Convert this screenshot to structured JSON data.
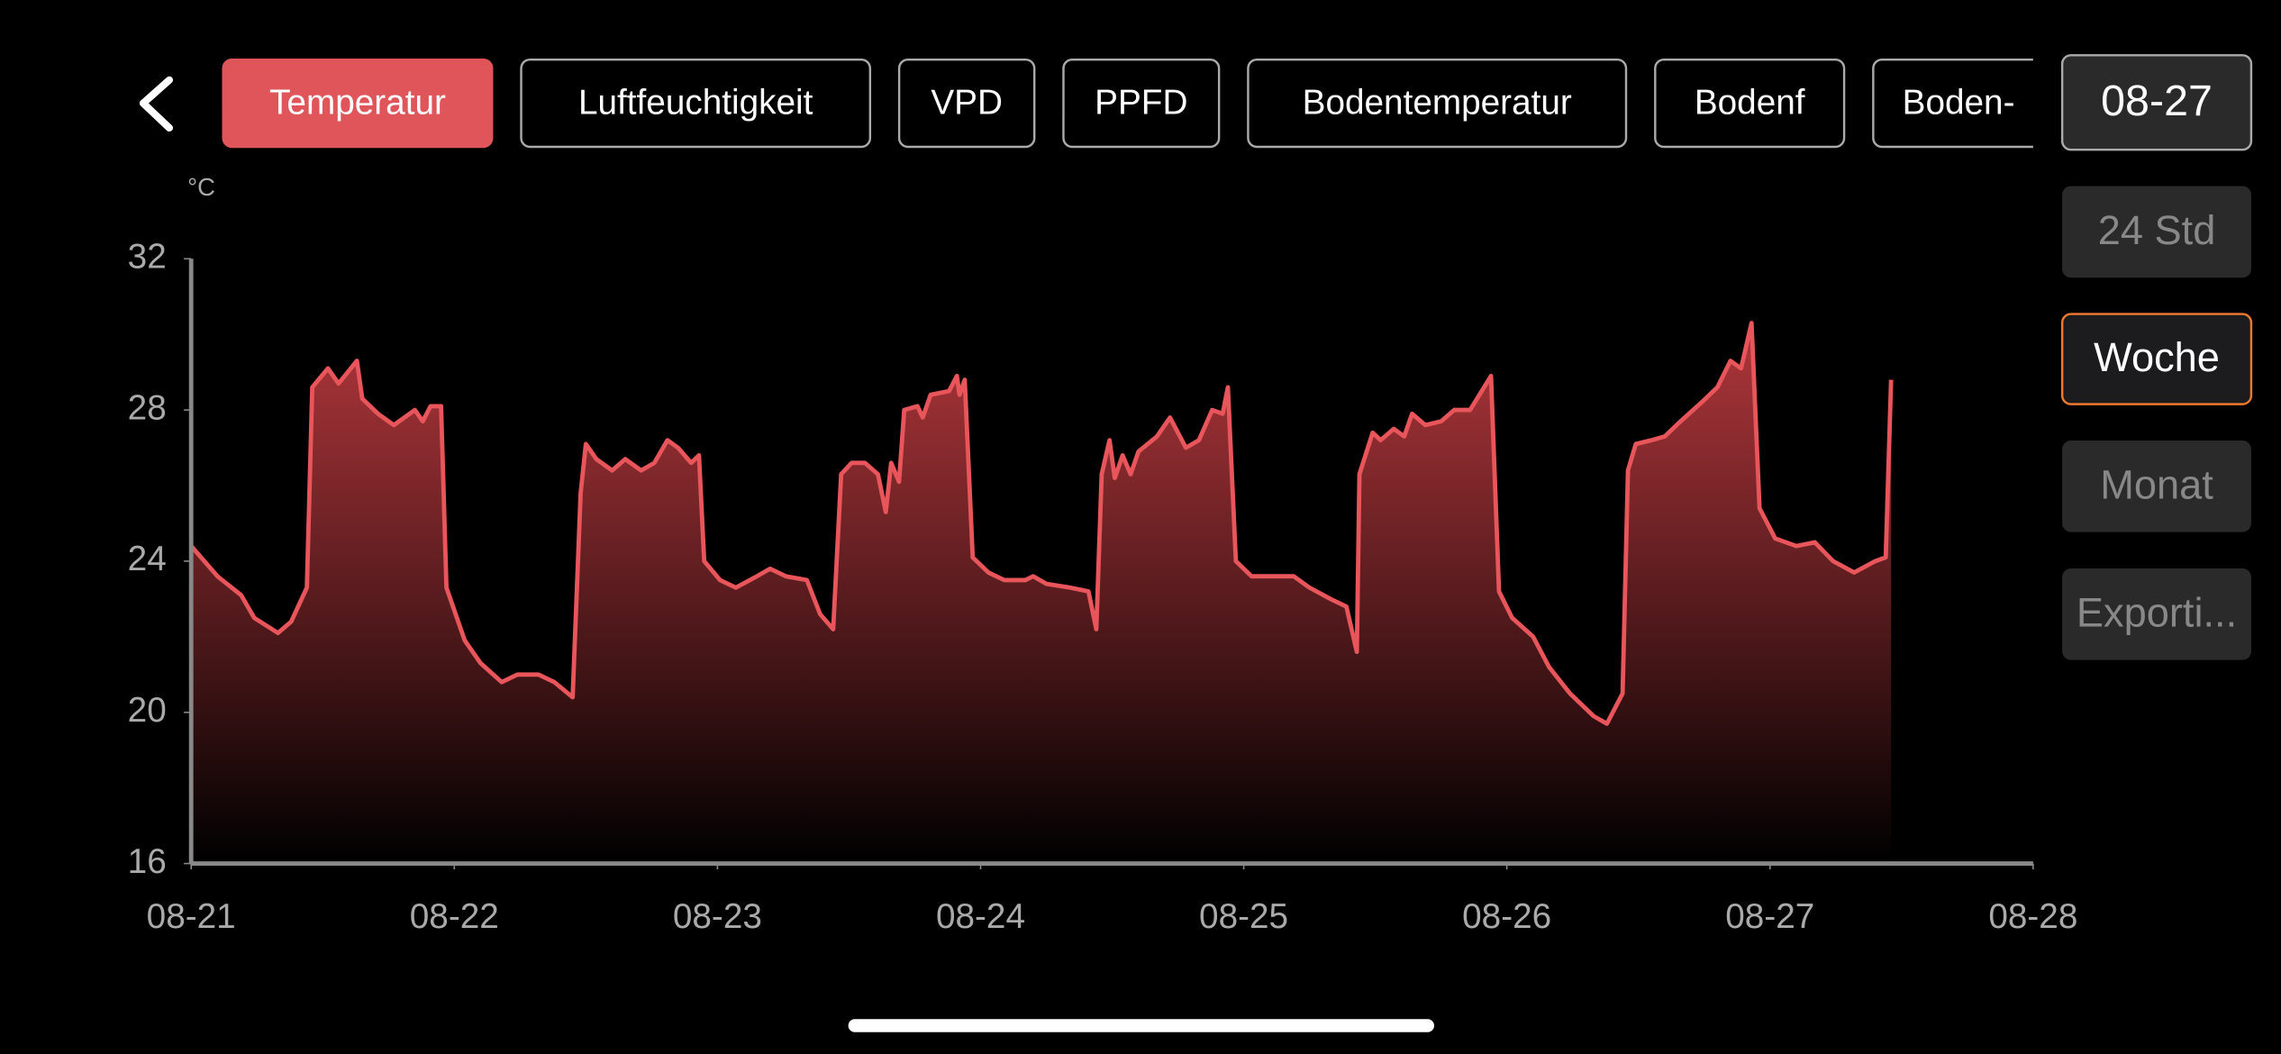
{
  "tabs": [
    "Temperatur",
    "Luftfeuchtigkeit",
    "VPD",
    "PPFD",
    "Bodentemperatur",
    "Bodenf",
    "Boden-"
  ],
  "side_buttons": [
    "08-27",
    "24 Std",
    "Woche",
    "Monat",
    "Exporti..."
  ],
  "chart_data": {
    "type": "line",
    "y_unit": "°C",
    "xlim": [
      0,
      7
    ],
    "xticks": [
      {
        "value": 0,
        "label": "08-21"
      },
      {
        "value": 1,
        "label": "08-22"
      },
      {
        "value": 2,
        "label": "08-23"
      },
      {
        "value": 3,
        "label": "08-24"
      },
      {
        "value": 4,
        "label": "08-25"
      },
      {
        "value": 5,
        "label": "08-26"
      },
      {
        "value": 6,
        "label": "08-27"
      },
      {
        "value": 7,
        "label": "08-28"
      }
    ],
    "ylim": [
      16,
      32
    ],
    "yticks": [
      16,
      20,
      24,
      28,
      32
    ],
    "x": [
      0,
      0.1,
      0.19,
      0.24,
      0.33,
      0.38,
      0.44,
      0.46,
      0.52,
      0.56,
      0.63,
      0.65,
      0.71,
      0.77,
      0.85,
      0.88,
      0.91,
      0.95,
      0.97,
      1.04,
      1.1,
      1.18,
      1.24,
      1.32,
      1.38,
      1.45,
      1.48,
      1.5,
      1.54,
      1.6,
      1.65,
      1.71,
      1.76,
      1.81,
      1.85,
      1.9,
      1.93,
      1.95,
      2.01,
      2.07,
      2.15,
      2.2,
      2.26,
      2.34,
      2.39,
      2.44,
      2.47,
      2.51,
      2.56,
      2.61,
      2.64,
      2.66,
      2.69,
      2.71,
      2.76,
      2.78,
      2.81,
      2.88,
      2.91,
      2.92,
      2.94,
      2.97,
      3.03,
      3.09,
      3.17,
      3.2,
      3.25,
      3.34,
      3.41,
      3.44,
      3.46,
      3.49,
      3.51,
      3.54,
      3.57,
      3.6,
      3.67,
      3.72,
      3.78,
      3.83,
      3.88,
      3.92,
      3.94,
      3.97,
      4.03,
      4.11,
      4.19,
      4.25,
      4.33,
      4.39,
      4.43,
      4.44,
      4.49,
      4.52,
      4.57,
      4.61,
      4.64,
      4.69,
      4.75,
      4.8,
      4.86,
      4.94,
      4.97,
      5.02,
      5.1,
      5.16,
      5.24,
      5.33,
      5.38,
      5.44,
      5.46,
      5.49,
      5.55,
      5.6,
      5.66,
      5.74,
      5.8,
      5.85,
      5.89,
      5.93,
      5.96,
      6.02,
      6.1,
      6.17,
      6.24,
      6.32,
      6.4,
      6.44,
      6.46
    ],
    "series": [
      {
        "color": "#e8555a",
        "values": [
          24.4,
          23.6,
          23.1,
          22.5,
          22.1,
          22.4,
          23.3,
          28.6,
          29.1,
          28.7,
          29.3,
          28.3,
          27.9,
          27.6,
          28.0,
          27.7,
          28.1,
          28.1,
          23.3,
          21.9,
          21.3,
          20.8,
          21.0,
          21.0,
          20.8,
          20.4,
          25.8,
          27.1,
          26.7,
          26.4,
          26.7,
          26.4,
          26.6,
          27.2,
          27.0,
          26.6,
          26.8,
          24.0,
          23.5,
          23.3,
          23.6,
          23.8,
          23.6,
          23.5,
          22.6,
          22.2,
          26.3,
          26.6,
          26.6,
          26.3,
          25.3,
          26.6,
          26.1,
          28.0,
          28.1,
          27.8,
          28.4,
          28.5,
          28.9,
          28.4,
          28.8,
          24.1,
          23.7,
          23.5,
          23.5,
          23.6,
          23.4,
          23.3,
          23.2,
          22.2,
          26.3,
          27.2,
          26.2,
          26.8,
          26.3,
          26.9,
          27.3,
          27.8,
          27.0,
          27.2,
          28.0,
          27.9,
          28.6,
          24.0,
          23.6,
          23.6,
          23.6,
          23.3,
          23.0,
          22.8,
          21.6,
          26.3,
          27.4,
          27.2,
          27.5,
          27.3,
          27.9,
          27.6,
          27.7,
          28.0,
          28.0,
          28.9,
          23.2,
          22.5,
          22.0,
          21.2,
          20.5,
          19.9,
          19.7,
          20.5,
          26.4,
          27.1,
          27.2,
          27.3,
          27.7,
          28.2,
          28.6,
          29.3,
          29.1,
          30.3,
          25.4,
          24.6,
          24.4,
          24.5,
          24.0,
          23.7,
          24.0,
          24.1,
          28.8
        ]
      }
    ]
  }
}
